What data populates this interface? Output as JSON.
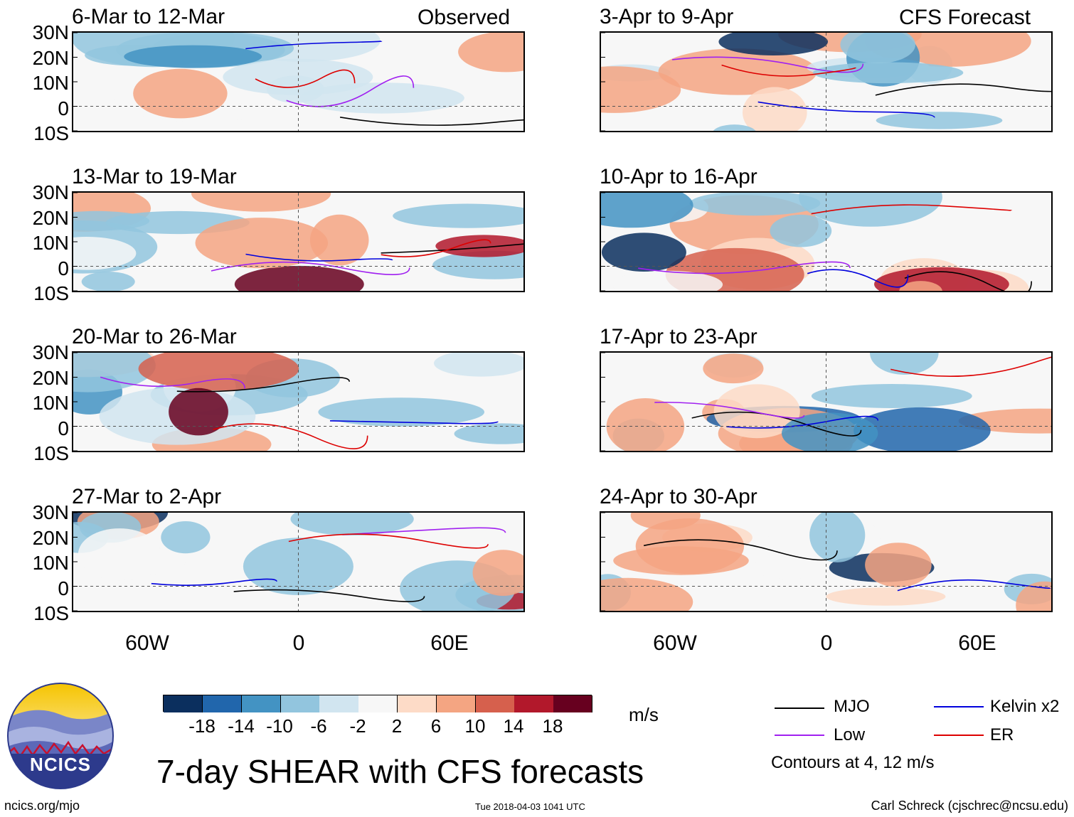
{
  "chart_data": {
    "type": "heatmap",
    "title": "7-day SHEAR with CFS forecasts",
    "units": "m/s",
    "lat_ticks": [
      "30N",
      "20N",
      "10N",
      "0",
      "10S"
    ],
    "lon_ticks": [
      "60W",
      "0",
      "60E"
    ],
    "lat_range": [
      -10,
      30
    ],
    "lon_range": [
      -90,
      90
    ],
    "columns": [
      {
        "tag": "Observed",
        "panels": [
          "6-Mar to 12-Mar",
          "13-Mar to 19-Mar",
          "20-Mar to 26-Mar",
          "27-Mar to 2-Apr"
        ]
      },
      {
        "tag": "CFS Forecast",
        "panels": [
          "3-Apr to 9-Apr",
          "10-Apr to 16-Apr",
          "17-Apr to 23-Apr",
          "24-Apr to 30-Apr"
        ]
      }
    ],
    "colorbar": {
      "levels": [
        "-18",
        "-14",
        "-10",
        "-6",
        "-2",
        "2",
        "6",
        "10",
        "14",
        "18"
      ],
      "colors": [
        "#0b2f5e",
        "#2166ac",
        "#4393c3",
        "#92c5de",
        "#d1e5f0",
        "#f7f7f7",
        "#fddbc7",
        "#f4a582",
        "#d6604d",
        "#b2182b",
        "#67001f"
      ]
    },
    "legend": [
      {
        "label": "MJO",
        "color": "#000000"
      },
      {
        "label": "Kelvin x2",
        "color": "#0000dd"
      },
      {
        "label": "Low",
        "color": "#a020f0"
      },
      {
        "label": "ER",
        "color": "#dd0000"
      }
    ],
    "contour_note": "Contours at 4, 12 m/s"
  },
  "logo": {
    "text": "NCICS"
  },
  "footer": {
    "url": "ncics.org/mjo",
    "timestamp": "Tue 2018-04-03 1041 UTC",
    "credit": "Carl Schreck (cjschrec@ncsu.edu)"
  }
}
